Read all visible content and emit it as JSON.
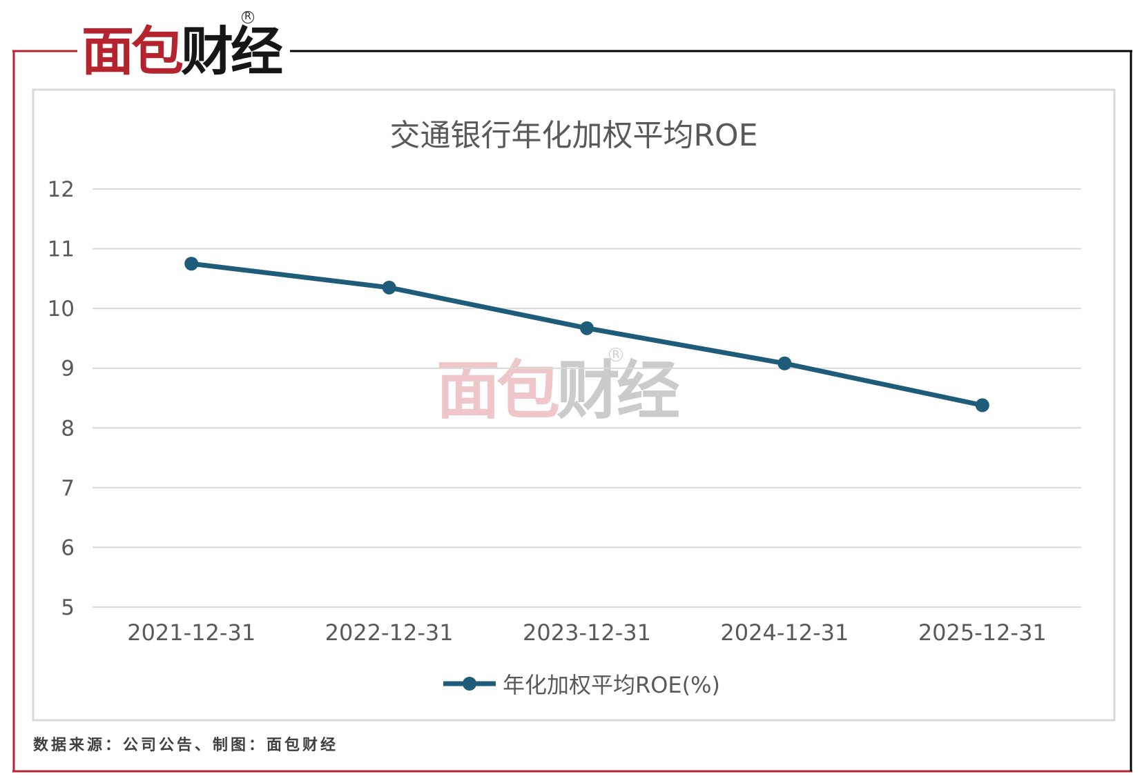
{
  "brand": {
    "logo_text_red": "面包",
    "logo_text_dark": "财经",
    "registered_mark": "R",
    "frame_color_left": "#b5232f",
    "frame_color_right": "#000000"
  },
  "watermark": {
    "text_red": "面包",
    "text_dark": "财经",
    "registered_mark": "R"
  },
  "source_note": "数据来源：公司公告、制图：面包财经",
  "chart_data": {
    "type": "line",
    "title": "交通银行年化加权平均ROE",
    "categories": [
      "2021-12-31",
      "2022-12-31",
      "2023-12-31",
      "2024-12-31",
      "2025-12-31"
    ],
    "series": [
      {
        "name": "年化加权平均ROE(%)",
        "color": "#1f5c7a",
        "values": [
          10.75,
          10.35,
          9.67,
          9.08,
          8.38
        ]
      }
    ],
    "ylim": [
      5,
      12
    ],
    "yticks": [
      "12",
      "11",
      "10",
      "9",
      "8",
      "7",
      "6",
      "5"
    ],
    "grid": true,
    "legend_position": "bottom"
  }
}
